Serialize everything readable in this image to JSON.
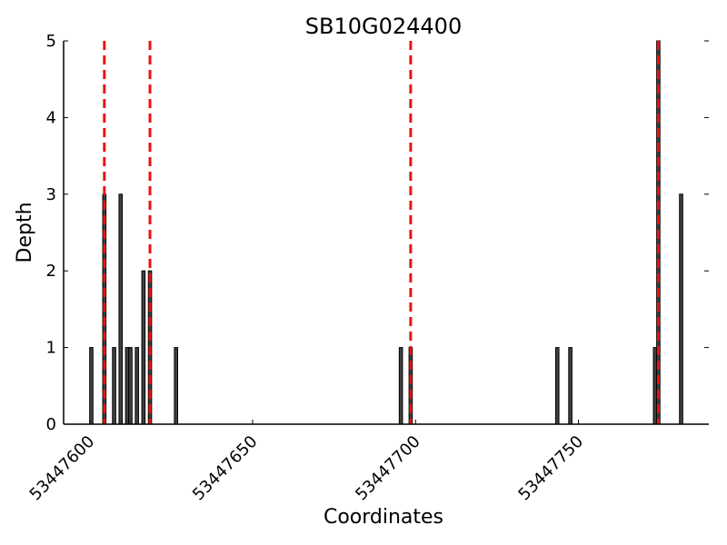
{
  "chart_data": {
    "type": "bar",
    "title": "SB10G024400",
    "xlabel": "Coordinates",
    "ylabel": "Depth",
    "xlim": [
      53447592,
      53447790
    ],
    "ylim": [
      0,
      5
    ],
    "x_ticks": [
      53447600,
      53447650,
      53447700,
      53447750
    ],
    "y_ticks": [
      0,
      1,
      2,
      3,
      4,
      5
    ],
    "bar_width": 1,
    "bars": [
      {
        "x": 53447600,
        "y": 1
      },
      {
        "x": 53447604,
        "y": 3
      },
      {
        "x": 53447607,
        "y": 1
      },
      {
        "x": 53447609,
        "y": 3
      },
      {
        "x": 53447611,
        "y": 1
      },
      {
        "x": 53447612,
        "y": 1
      },
      {
        "x": 53447614,
        "y": 1
      },
      {
        "x": 53447616,
        "y": 2
      },
      {
        "x": 53447618,
        "y": 2
      },
      {
        "x": 53447626,
        "y": 1
      },
      {
        "x": 53447695,
        "y": 1
      },
      {
        "x": 53447698,
        "y": 1
      },
      {
        "x": 53447743,
        "y": 1
      },
      {
        "x": 53447747,
        "y": 1
      },
      {
        "x": 53447773,
        "y": 1
      },
      {
        "x": 53447774,
        "y": 5
      },
      {
        "x": 53447781,
        "y": 3
      }
    ],
    "markers": [
      53447604.5,
      53447618.5,
      53447698.5,
      53447774.5
    ],
    "colors": {
      "bar_fill": "#404040",
      "bar_edge": "#000000",
      "marker": "#ee1111"
    }
  }
}
